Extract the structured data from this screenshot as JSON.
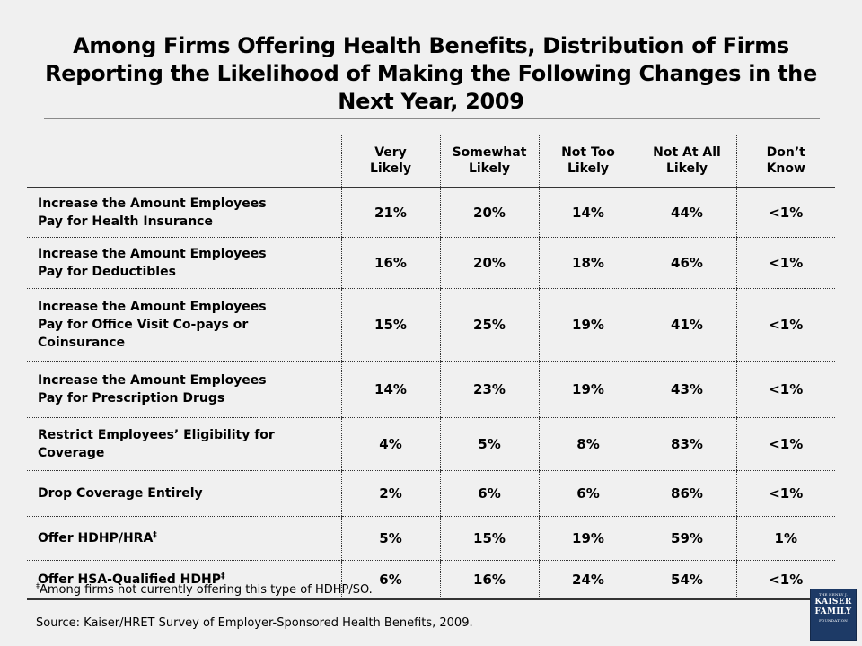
{
  "title": "Among Firms Offering Health Benefits, Distribution of Firms Reporting the Likelihood of Making the Following Changes in the Next Year, 2009",
  "table": {
    "columns": [
      {
        "line1": "Very",
        "line2": "Likely"
      },
      {
        "line1": "Somewhat",
        "line2": "Likely"
      },
      {
        "line1": "Not Too",
        "line2": "Likely"
      },
      {
        "line1": "Not At All",
        "line2": "Likely"
      },
      {
        "line1": "Don’t",
        "line2": "Know"
      }
    ],
    "rows": [
      {
        "label_lines": [
          "Increase the Amount Employees",
          "Pay for Health Insurance"
        ],
        "values": [
          "21%",
          "20%",
          "14%",
          "44%",
          "<1%"
        ]
      },
      {
        "label_lines": [
          "Increase the Amount Employees",
          "Pay for Deductibles"
        ],
        "values": [
          "16%",
          "20%",
          "18%",
          "46%",
          "<1%"
        ]
      },
      {
        "label_lines": [
          "Increase the Amount Employees",
          "Pay for Office Visit Co-pays or",
          "Coinsurance"
        ],
        "values": [
          "15%",
          "25%",
          "19%",
          "41%",
          "<1%"
        ]
      },
      {
        "label_lines": [
          "Increase the Amount Employees",
          "Pay for Prescription Drugs"
        ],
        "values": [
          "14%",
          "23%",
          "19%",
          "43%",
          "<1%"
        ]
      },
      {
        "label_lines": [
          "Restrict Employees’ Eligibility for",
          "Coverage"
        ],
        "values": [
          "4%",
          "5%",
          "8%",
          "83%",
          "<1%"
        ]
      },
      {
        "label_lines": [
          "Drop Coverage Entirely"
        ],
        "values": [
          "2%",
          "6%",
          "6%",
          "86%",
          "<1%"
        ]
      },
      {
        "label_lines": [
          "Offer HDHP/HRA"
        ],
        "marker": "‡",
        "values": [
          "5%",
          "15%",
          "19%",
          "59%",
          "1%"
        ]
      },
      {
        "label_lines": [
          "Offer HSA-Qualified HDHP"
        ],
        "marker": "‡",
        "values": [
          "6%",
          "16%",
          "24%",
          "54%",
          "<1%"
        ]
      }
    ]
  },
  "footnote": {
    "marker": "‡",
    "text": "Among firms not currently offering this type of HDHP/SO."
  },
  "source": "Source: Kaiser/HRET Survey of Employer-Sponsored Health Benefits, 2009.",
  "logo": {
    "line1": "THE HENRY J.",
    "line2": "KAISER",
    "line3": "FAMILY",
    "line4": "FOUNDATION",
    "color": "#1d3a66"
  }
}
